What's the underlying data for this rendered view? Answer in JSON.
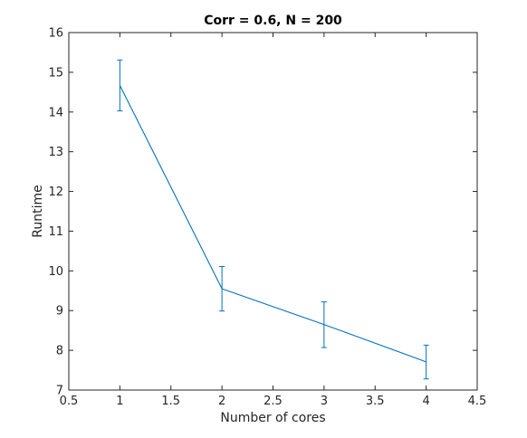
{
  "chart_data": {
    "type": "line",
    "title": "Corr = 0.6, N = 200",
    "xlabel": "Number of cores",
    "ylabel": "Runtime",
    "xlim": [
      0.5,
      4.5
    ],
    "ylim": [
      7,
      16
    ],
    "xticks": [
      "0.5",
      "1",
      "1.5",
      "2",
      "2.5",
      "3",
      "3.5",
      "4",
      "4.5"
    ],
    "yticks": [
      "7",
      "8",
      "9",
      "10",
      "11",
      "12",
      "13",
      "14",
      "15",
      "16"
    ],
    "grid": false,
    "series": [
      {
        "x": [
          1,
          2,
          3,
          4
        ],
        "y": [
          14.67,
          9.55,
          8.65,
          7.71
        ],
        "err_low": [
          14.03,
          8.99,
          8.07,
          7.28
        ],
        "err_high": [
          15.31,
          10.11,
          9.22,
          8.13
        ],
        "color": "#0072bd"
      }
    ]
  }
}
